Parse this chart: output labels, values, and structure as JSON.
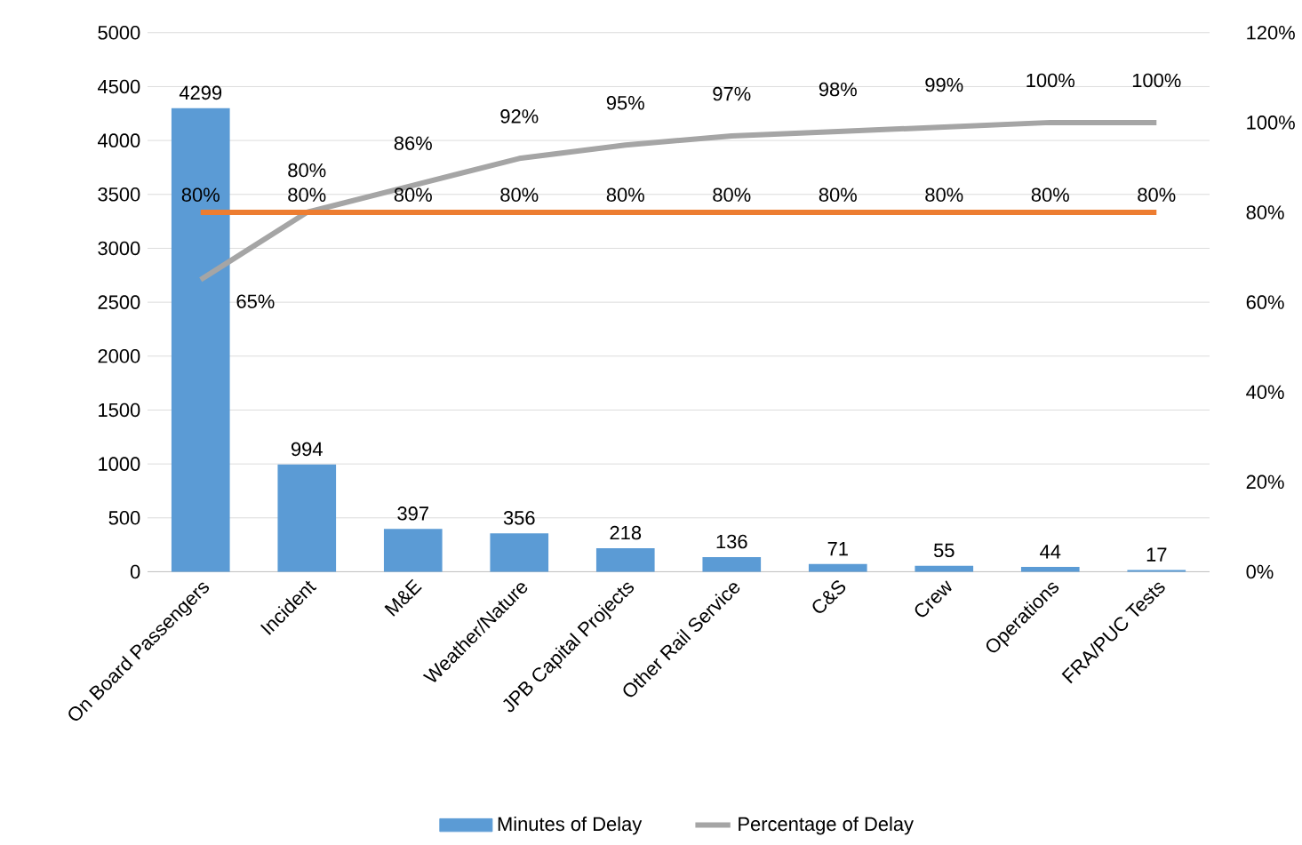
{
  "chart_data": {
    "type": "bar",
    "categories": [
      "On Board Passengers",
      "Incident",
      "M&E",
      "Weather/Nature",
      "JPB Capital Projects",
      "Other Rail Service",
      "C&S",
      "Crew",
      "Operations",
      "FRA/PUC Tests"
    ],
    "series": [
      {
        "name": "Minutes of Delay",
        "color": "#5b9bd5",
        "values": [
          4299,
          994,
          397,
          356,
          218,
          136,
          71,
          55,
          44,
          17
        ]
      },
      {
        "name": "Percentage of Delay",
        "type": "line",
        "axis": "y2",
        "color": "#a5a5a5",
        "values": [
          65,
          80,
          86,
          92,
          95,
          97,
          98,
          99,
          100,
          100
        ],
        "value_labels": [
          "65%",
          "80%",
          "86%",
          "92%",
          "95%",
          "97%",
          "98%",
          "99%",
          "100%",
          "100%"
        ]
      },
      {
        "type": "line",
        "axis": "y2",
        "color": "#ed7d31",
        "values": [
          80,
          80,
          80,
          80,
          80,
          80,
          80,
          80,
          80,
          80
        ],
        "value_labels": [
          "80%",
          "80%",
          "80%",
          "80%",
          "80%",
          "80%",
          "80%",
          "80%",
          "80%",
          "80%"
        ]
      }
    ],
    "data_labels": true,
    "ylim": [
      0,
      5000
    ],
    "yticks": [
      0,
      500,
      1000,
      1500,
      2000,
      2500,
      3000,
      3500,
      4000,
      4500,
      5000
    ],
    "y2lim": [
      0,
      120
    ],
    "y2ticks": [
      {
        "value": 0,
        "label": "0%"
      },
      {
        "value": 20,
        "label": "20%"
      },
      {
        "value": 40,
        "label": "40%"
      },
      {
        "value": 60,
        "label": "60%"
      },
      {
        "value": 80,
        "label": "80%"
      },
      {
        "value": 100,
        "label": "100%"
      },
      {
        "value": 120,
        "label": "120%"
      }
    ],
    "grid": "y",
    "legend": "bottom"
  }
}
